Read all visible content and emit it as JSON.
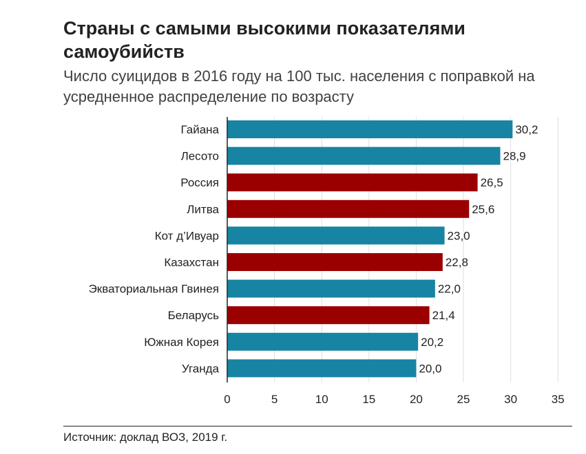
{
  "title": "Страны с самыми высокими показателями самоубийств",
  "subtitle": "Число суицидов в 2016 году на 100 тыс. населения с поправкой на усредненное распределение по возрасту",
  "source": "Источник: доклад ВОЗ, 2019 г.",
  "colors": {
    "blue": "#1784a3",
    "red": "#9b0000",
    "grid": "#dedede",
    "text": "#222222"
  },
  "chart_data": {
    "type": "bar",
    "orientation": "horizontal",
    "title": "Страны с самыми высокими показателями самоубийств",
    "subtitle": "Число суицидов в 2016 году на 100 тыс. населения с поправкой на усредненное распределение по возрасту",
    "xlabel": "",
    "ylabel": "",
    "xlim": [
      0,
      35
    ],
    "xticks": [
      0,
      5,
      10,
      15,
      20,
      25,
      30,
      35
    ],
    "grid": true,
    "categories": [
      "Гайана",
      "Лесото",
      "Россия",
      "Литва",
      "Кот д’Ивуар",
      "Казахстан",
      "Экваториальная Гвинея",
      "Беларусь",
      "Южная Корея",
      "Уганда"
    ],
    "values": [
      30.2,
      28.9,
      26.5,
      25.6,
      23.0,
      22.8,
      22.0,
      21.4,
      20.2,
      20.0
    ],
    "value_labels": [
      "30,2",
      "28,9",
      "26,5",
      "25,6",
      "23,0",
      "22,8",
      "22,0",
      "21,4",
      "20,2",
      "20,0"
    ],
    "bar_colors": [
      "blue",
      "blue",
      "red",
      "red",
      "blue",
      "red",
      "blue",
      "red",
      "blue",
      "blue"
    ]
  }
}
